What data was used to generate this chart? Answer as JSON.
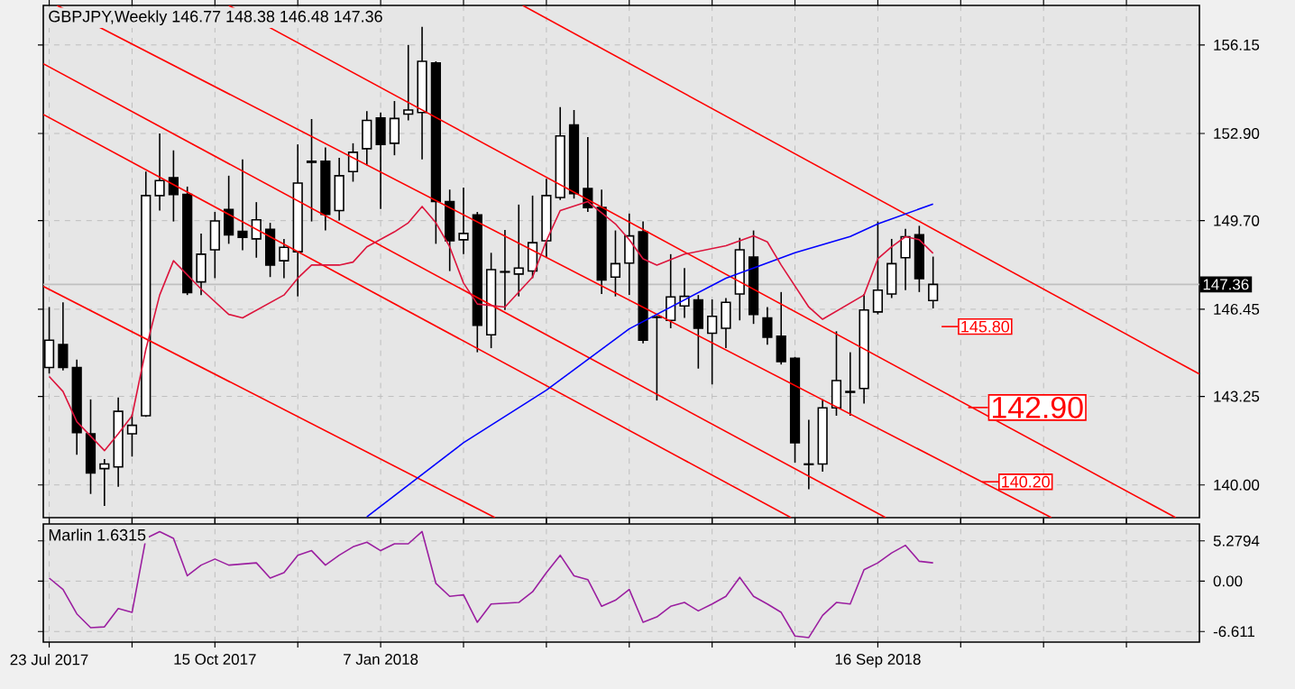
{
  "chart_data": [
    {
      "type": "candlestick",
      "title": "GBPJPY,Weekly  146.77 148.38 146.48 147.36",
      "color": "#000000",
      "x": [
        "2017-07-23",
        "2017-07-30",
        "2017-08-06",
        "2017-08-13",
        "2017-08-20",
        "2017-08-27",
        "2017-09-03",
        "2017-09-10",
        "2017-09-17",
        "2017-09-24",
        "2017-10-01",
        "2017-10-08",
        "2017-10-15",
        "2017-10-22",
        "2017-10-29",
        "2017-11-05",
        "2017-11-12",
        "2017-11-19",
        "2017-11-26",
        "2017-12-03",
        "2017-12-10",
        "2017-12-17",
        "2017-12-24",
        "2017-12-31",
        "2018-01-07",
        "2018-01-14",
        "2018-01-21",
        "2018-01-28",
        "2018-02-04",
        "2018-02-11",
        "2018-02-18",
        "2018-02-25",
        "2018-03-04",
        "2018-03-11",
        "2018-03-18",
        "2018-03-25",
        "2018-04-01",
        "2018-04-08",
        "2018-04-15",
        "2018-04-22",
        "2018-04-29",
        "2018-05-06",
        "2018-05-13",
        "2018-05-20",
        "2018-05-27",
        "2018-06-03",
        "2018-06-10",
        "2018-06-17",
        "2018-06-24",
        "2018-07-01",
        "2018-07-08",
        "2018-07-15",
        "2018-07-22",
        "2018-07-29",
        "2018-08-05",
        "2018-08-12",
        "2018-08-19",
        "2018-08-26",
        "2018-09-02",
        "2018-09-09",
        "2018-09-16",
        "2018-09-23",
        "2018-09-30",
        "2018-10-07",
        "2018-10-14"
      ],
      "ohlc": [
        [
          144.31,
          146.53,
          144.09,
          145.31
        ],
        [
          145.15,
          146.7,
          144.2,
          144.31
        ],
        [
          144.31,
          144.6,
          141.11,
          141.92
        ],
        [
          141.88,
          143.14,
          139.67,
          140.44
        ],
        [
          140.6,
          140.95,
          139.23,
          140.77
        ],
        [
          140.66,
          143.21,
          139.93,
          142.7
        ],
        [
          141.88,
          142.59,
          141.04,
          142.19
        ],
        [
          142.54,
          151.5,
          142.5,
          150.62
        ],
        [
          150.62,
          152.9,
          150.07,
          151.17
        ],
        [
          151.28,
          152.28,
          149.67,
          150.66
        ],
        [
          150.66,
          150.95,
          146.97,
          147.06
        ],
        [
          147.45,
          149.23,
          146.97,
          148.47
        ],
        [
          148.63,
          150.02,
          147.59,
          149.69
        ],
        [
          150.11,
          151.35,
          148.85,
          149.18
        ],
        [
          149.31,
          151.95,
          148.61,
          149.09
        ],
        [
          149.03,
          150.38,
          148.34,
          149.73
        ],
        [
          149.38,
          149.62,
          147.63,
          148.07
        ],
        [
          148.23,
          149.03,
          147.59,
          148.72
        ],
        [
          148.56,
          152.5,
          146.92,
          151.08
        ],
        [
          151.88,
          153.43,
          149.67,
          151.84
        ],
        [
          151.88,
          152.39,
          149.34,
          149.93
        ],
        [
          150.07,
          152.01,
          149.71,
          151.35
        ],
        [
          151.5,
          152.54,
          151.13,
          152.21
        ],
        [
          152.34,
          153.72,
          151.73,
          153.38
        ],
        [
          153.47,
          153.67,
          150.13,
          152.5
        ],
        [
          152.54,
          154.09,
          152.1,
          153.45
        ],
        [
          153.61,
          156.15,
          153.38,
          153.76
        ],
        [
          153.67,
          156.81,
          151.95,
          155.55
        ],
        [
          155.49,
          155.55,
          148.85,
          150.4
        ],
        [
          150.4,
          150.84,
          147.85,
          148.96
        ],
        [
          149.0,
          150.91,
          148.47,
          149.23
        ],
        [
          149.91,
          150.02,
          144.87,
          145.86
        ],
        [
          145.51,
          148.52,
          145.02,
          147.9
        ],
        [
          147.81,
          149.36,
          146.42,
          147.83
        ],
        [
          147.74,
          150.29,
          146.92,
          147.96
        ],
        [
          147.85,
          150.62,
          147.59,
          148.89
        ],
        [
          148.96,
          151.24,
          148.34,
          150.62
        ],
        [
          150.55,
          153.87,
          150.46,
          152.81
        ],
        [
          153.21,
          153.76,
          150.51,
          150.69
        ],
        [
          150.88,
          152.77,
          150.02,
          150.18
        ],
        [
          150.18,
          150.84,
          147.01,
          147.52
        ],
        [
          147.63,
          149.34,
          146.92,
          148.12
        ],
        [
          148.14,
          149.96,
          146.97,
          149.14
        ],
        [
          149.29,
          149.67,
          145.2,
          145.31
        ],
        [
          146.15,
          146.2,
          143.1,
          146.17
        ],
        [
          146.04,
          148.47,
          145.75,
          146.9
        ],
        [
          146.57,
          147.96,
          146.13,
          146.92
        ],
        [
          146.79,
          146.97,
          144.27,
          145.75
        ],
        [
          145.57,
          146.81,
          143.69,
          146.19
        ],
        [
          145.75,
          146.86,
          145.02,
          146.7
        ],
        [
          147.01,
          149.07,
          146.04,
          148.63
        ],
        [
          148.36,
          149.34,
          145.91,
          146.26
        ],
        [
          146.13,
          146.53,
          145.15,
          145.42
        ],
        [
          145.46,
          147.08,
          144.42,
          144.53
        ],
        [
          144.65,
          144.7,
          140.82,
          141.55
        ],
        [
          140.75,
          142.39,
          139.84,
          140.77
        ],
        [
          140.77,
          143.14,
          140.49,
          142.83
        ],
        [
          142.83,
          145.64,
          142.54,
          143.83
        ],
        [
          143.4,
          144.87,
          142.54,
          143.43
        ],
        [
          143.54,
          147.01,
          142.99,
          146.42
        ],
        [
          146.35,
          149.67,
          146.26,
          147.15
        ],
        [
          147.01,
          149.03,
          146.86,
          148.12
        ],
        [
          148.34,
          149.4,
          147.15,
          149.11
        ],
        [
          149.18,
          149.51,
          147.08,
          147.57
        ],
        [
          146.77,
          148.38,
          146.48,
          147.36
        ]
      ],
      "series": [
        {
          "type": "line",
          "color": "#ff0000",
          "x": [
            "2018-03-20",
            "2019-02-26"
          ],
          "values": [
            157.6,
            144.07
          ]
        },
        {
          "type": "line",
          "color": "#ff0000",
          "x": [
            "2017-10-22",
            "2019-02-14"
          ],
          "values": [
            157.6,
            138.8
          ]
        },
        {
          "type": "line",
          "color": "#ff0000",
          "x": [
            "2017-07-27",
            "2018-12-13"
          ],
          "values": [
            157.6,
            138.8
          ]
        },
        {
          "type": "line",
          "color": "#ff0000",
          "x": [
            "2017-07-20",
            "2018-09-20"
          ],
          "values": [
            155.46,
            138.8
          ]
        },
        {
          "type": "line",
          "color": "#ff0000",
          "x": [
            "2017-07-20",
            "2018-08-03"
          ],
          "values": [
            153.6,
            138.8
          ]
        },
        {
          "type": "line",
          "color": "#ff0000",
          "x": [
            "2017-07-20",
            "2018-03-06"
          ],
          "values": [
            147.29,
            138.8
          ]
        },
        {
          "type": "line",
          "color": "#0000ff",
          "x": [
            "2017-12-31",
            "2018-02-18",
            "2018-04-01",
            "2018-05-13",
            "2018-07-01",
            "2018-08-05",
            "2018-09-02",
            "2018-09-16",
            "2018-10-14"
          ],
          "values": [
            138.83,
            141.55,
            143.48,
            145.73,
            147.59,
            148.52,
            149.12,
            149.58,
            150.31
          ]
        },
        {
          "type": "line",
          "color": "#dc143c",
          "x": [
            "2017-07-23",
            "2017-07-30",
            "2017-08-06",
            "2017-08-20",
            "2017-08-27",
            "2017-09-03",
            "2017-09-10",
            "2017-09-17",
            "2017-09-24",
            "2017-10-08",
            "2017-10-22",
            "2017-10-29",
            "2017-11-19",
            "2017-11-26",
            "2017-12-03",
            "2017-12-17",
            "2017-12-24",
            "2017-12-31",
            "2018-01-14",
            "2018-01-21",
            "2018-01-28",
            "2018-02-04",
            "2018-02-11",
            "2018-02-18",
            "2018-02-25",
            "2018-03-11",
            "2018-03-25",
            "2018-04-01",
            "2018-04-08",
            "2018-04-22",
            "2018-05-06",
            "2018-05-13",
            "2018-05-20",
            "2018-05-27",
            "2018-06-10",
            "2018-07-01",
            "2018-07-15",
            "2018-07-22",
            "2018-07-29",
            "2018-08-12",
            "2018-08-19",
            "2018-09-09",
            "2018-09-16",
            "2018-09-23",
            "2018-09-30",
            "2018-10-07",
            "2018-10-14"
          ],
          "values": [
            143.98,
            143.43,
            142.32,
            141.26,
            141.88,
            142.54,
            144.98,
            146.97,
            148.23,
            147.19,
            146.26,
            146.13,
            146.97,
            147.59,
            148.07,
            148.07,
            148.18,
            148.74,
            149.29,
            149.62,
            150.22,
            149.62,
            148.74,
            147.41,
            146.64,
            146.53,
            147.63,
            148.96,
            150.07,
            150.4,
            149.58,
            149.0,
            148.3,
            148.07,
            148.47,
            148.78,
            149.14,
            148.92,
            148.07,
            146.53,
            146.08,
            146.97,
            148.3,
            148.74,
            149.11,
            149.0,
            148.5
          ]
        }
      ],
      "xlim": [
        "2017-07-20",
        "2019-02-26"
      ],
      "ylim": [
        138.8,
        157.6
      ],
      "xticks": [
        {
          "value": "2017-07-23",
          "label": null
        },
        {
          "value": "2017-09-03",
          "label": null
        },
        {
          "value": "2017-10-15",
          "label": null
        },
        {
          "value": "2017-11-26",
          "label": null
        },
        {
          "value": "2018-01-07",
          "label": null
        },
        {
          "value": "2018-02-18",
          "label": null
        },
        {
          "value": "2018-04-01",
          "label": null
        },
        {
          "value": "2018-05-13",
          "label": null
        },
        {
          "value": "2018-06-24",
          "label": null
        },
        {
          "value": "2018-08-05",
          "label": null
        },
        {
          "value": "2018-09-16",
          "label": null
        },
        {
          "value": "2018-10-28",
          "label": null
        },
        {
          "value": "2018-12-09",
          "label": null
        },
        {
          "value": "2019-01-20",
          "label": null
        }
      ],
      "yticks": [
        {
          "value": 140.0,
          "label": "140.00"
        },
        143.25,
        146.45,
        {
          "value": 149.7,
          "label": "149.70"
        },
        {
          "value": 152.9,
          "label": "152.90"
        },
        156.15
      ],
      "grid": true,
      "tick_labels": "y",
      "ref_lines": [
        {
          "axis": "y",
          "value": 147.36,
          "label": "147.36",
          "color": "#c0c0c0"
        }
      ],
      "annotations": [
        "145.80",
        "142.90",
        "140.20"
      ]
    },
    {
      "type": "line",
      "title": "Marlin 1.6315",
      "color": "#9b1fa0",
      "x": [
        "2017-07-23",
        "2017-07-30",
        "2017-08-06",
        "2017-08-13",
        "2017-08-20",
        "2017-08-27",
        "2017-09-03",
        "2017-09-10",
        "2017-09-17",
        "2017-09-24",
        "2017-10-01",
        "2017-10-08",
        "2017-10-15",
        "2017-10-22",
        "2017-11-05",
        "2017-11-12",
        "2017-11-19",
        "2017-11-26",
        "2017-12-03",
        "2017-12-10",
        "2017-12-17",
        "2017-12-24",
        "2017-12-31",
        "2018-01-07",
        "2018-01-14",
        "2018-01-21",
        "2018-01-28",
        "2018-02-04",
        "2018-02-11",
        "2018-02-18",
        "2018-02-25",
        "2018-03-04",
        "2018-03-18",
        "2018-03-25",
        "2018-04-01",
        "2018-04-08",
        "2018-04-15",
        "2018-04-22",
        "2018-04-29",
        "2018-05-06",
        "2018-05-13",
        "2018-05-20",
        "2018-05-27",
        "2018-06-03",
        "2018-06-10",
        "2018-06-17",
        "2018-06-24",
        "2018-07-01",
        "2018-07-08",
        "2018-07-15",
        "2018-07-22",
        "2018-07-29",
        "2018-08-05",
        "2018-08-12",
        "2018-08-19",
        "2018-08-26",
        "2018-09-02",
        "2018-09-09",
        "2018-09-16",
        "2018-09-23",
        "2018-09-30",
        "2018-10-07",
        "2018-10-14"
      ],
      "values": [
        0.4,
        -1.1,
        -4.3,
        -6.1,
        -6.0,
        -3.6,
        -4.1,
        5.6,
        6.5,
        5.6,
        0.7,
        2.1,
        2.9,
        2.1,
        2.4,
        0.4,
        1.1,
        3.4,
        4.0,
        2.1,
        3.4,
        4.5,
        5.1,
        4.0,
        4.9,
        4.9,
        6.5,
        -0.3,
        -2.0,
        -1.8,
        -5.4,
        -3.0,
        -2.8,
        -1.4,
        1.1,
        3.4,
        0.7,
        0.2,
        -3.3,
        -2.5,
        -1.1,
        -5.4,
        -4.7,
        -3.3,
        -2.8,
        -3.9,
        -3.0,
        -2.0,
        0.5,
        -2.0,
        -3.0,
        -4.1,
        -7.2,
        -7.4,
        -4.5,
        -2.8,
        -3.0,
        1.5,
        2.4,
        3.7,
        4.7,
        2.6,
        2.4
      ],
      "xlim": [
        "2017-07-20",
        "2019-02-26"
      ],
      "ylim": [
        -8.0,
        7.5
      ],
      "xticks": [
        {
          "value": "2017-07-23",
          "label": "23 Jul 2017"
        },
        {
          "value": "2017-09-03",
          "label": null
        },
        {
          "value": "2017-10-15",
          "label": "15 Oct 2017"
        },
        {
          "value": "2017-11-26",
          "label": null
        },
        {
          "value": "2018-01-07",
          "label": "7 Jan 2018"
        },
        {
          "value": "2018-02-18",
          "label": null
        },
        {
          "value": "2018-04-01",
          "label": null
        },
        {
          "value": "2018-05-13",
          "label": null
        },
        {
          "value": "2018-06-24",
          "label": null
        },
        {
          "value": "2018-08-05",
          "label": null
        },
        {
          "value": "2018-09-16",
          "label": "16 Sep 2018"
        },
        {
          "value": "2018-10-28",
          "label": null
        },
        {
          "value": "2018-12-09",
          "label": null
        },
        {
          "value": "2019-01-20",
          "label": null
        }
      ],
      "yticks": [
        -6.611,
        {
          "value": 0,
          "label": "0.00"
        },
        5.2794
      ],
      "grid": true
    }
  ]
}
